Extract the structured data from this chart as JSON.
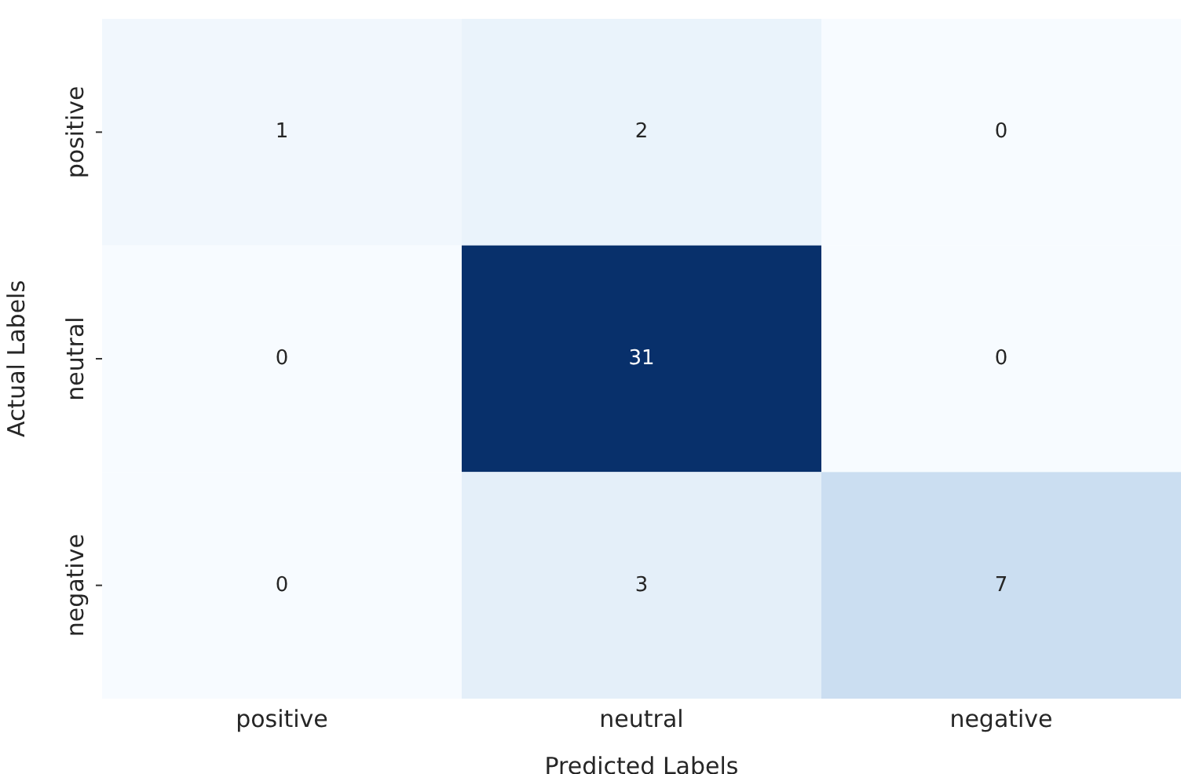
{
  "chart_data": {
    "type": "heatmap",
    "xlabel": "Predicted Labels",
    "ylabel": "Actual Labels",
    "categories": [
      "positive",
      "neutral",
      "negative"
    ],
    "y_categories": [
      "positive",
      "neutral",
      "negative"
    ],
    "data_labels": true,
    "cells": [
      [
        1,
        2,
        0
      ],
      [
        0,
        31,
        0
      ],
      [
        0,
        3,
        7
      ]
    ]
  }
}
